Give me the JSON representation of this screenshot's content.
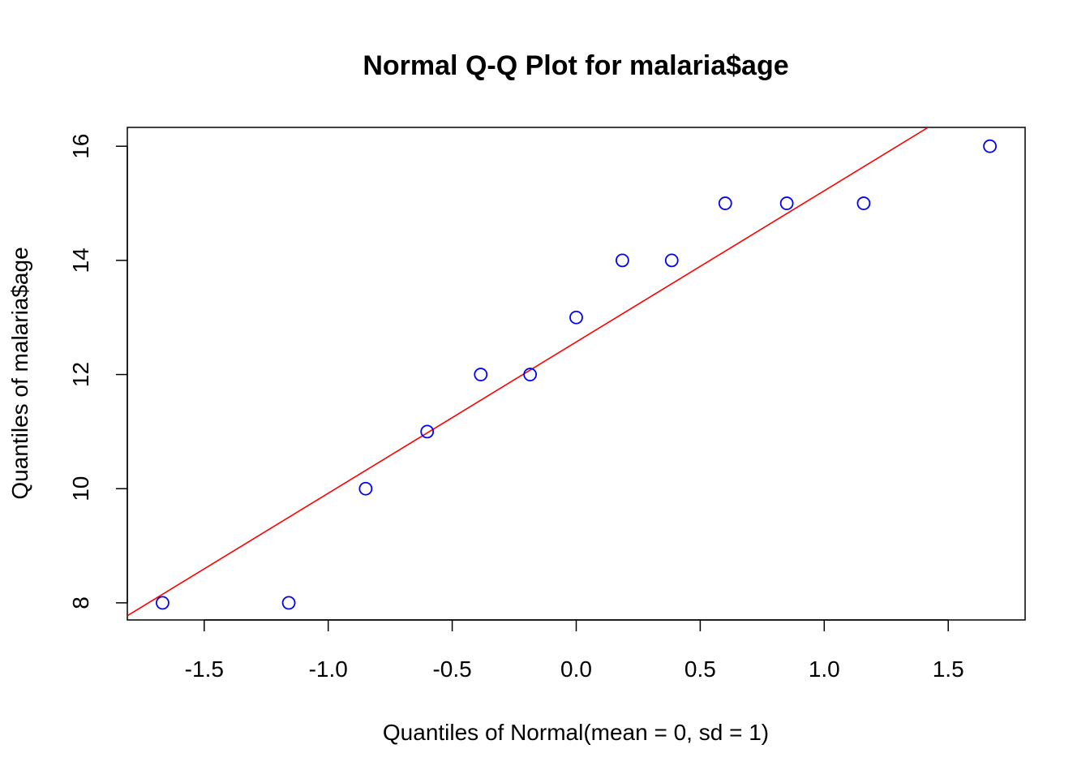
{
  "chart_data": {
    "type": "scatter",
    "title": "Normal Q-Q Plot for malaria$age",
    "xlabel": "Quantiles of Normal(mean = 0, sd = 1)",
    "ylabel": "Quantiles of malaria$age",
    "xlim": [
      -1.81,
      1.81
    ],
    "ylim": [
      7.7,
      16.33
    ],
    "x_ticks": [
      -1.5,
      -1.0,
      -0.5,
      0.0,
      0.5,
      1.0,
      1.5
    ],
    "x_tick_labels": [
      "-1.5",
      "-1.0",
      "-0.5",
      "0.0",
      "0.5",
      "1.0",
      "1.5"
    ],
    "y_ticks": [
      8,
      10,
      12,
      14,
      16
    ],
    "y_tick_labels": [
      "8",
      "10",
      "12",
      "14",
      "16"
    ],
    "grid": false,
    "points": {
      "x": [
        -1.668,
        -1.159,
        -0.849,
        -0.601,
        -0.385,
        -0.186,
        0.0,
        0.186,
        0.385,
        0.601,
        0.849,
        1.159,
        1.668
      ],
      "y": [
        8,
        8,
        10,
        11,
        12,
        12,
        13,
        14,
        14,
        15,
        15,
        15,
        16
      ],
      "color": "#0000ff",
      "marker": "open-circle"
    },
    "reference_line": {
      "type": "qq-line",
      "intercept": 12.57,
      "slope": 2.65,
      "color": "#ff0000"
    }
  }
}
